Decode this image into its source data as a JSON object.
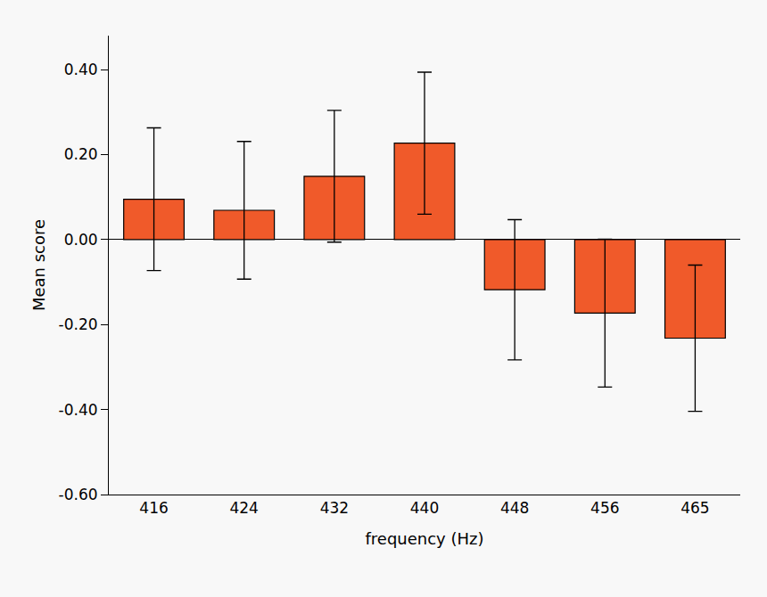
{
  "chart_data": {
    "type": "bar",
    "x_label": "frequency (Hz)",
    "y_label": "Mean score",
    "categories": [
      "416",
      "424",
      "432",
      "440",
      "448",
      "456",
      "465"
    ],
    "values": [
      0.095,
      0.069,
      0.149,
      0.227,
      -0.118,
      -0.173,
      -0.232
    ],
    "errors": [
      0.168,
      0.162,
      0.155,
      0.167,
      0.165,
      0.174,
      0.172
    ],
    "color": "#f05a2a",
    "ylim": [
      -0.6,
      0.48
    ],
    "yticks": [
      {
        "value": -0.6,
        "label": "-0.60"
      },
      {
        "value": -0.4,
        "label": "-0.40"
      },
      {
        "value": -0.2,
        "label": "-0.20"
      },
      {
        "value": 0,
        "label": "0.00"
      },
      {
        "value": 0.2,
        "label": "0.20"
      },
      {
        "value": 0.4,
        "label": "0.40"
      }
    ],
    "grid": false
  }
}
